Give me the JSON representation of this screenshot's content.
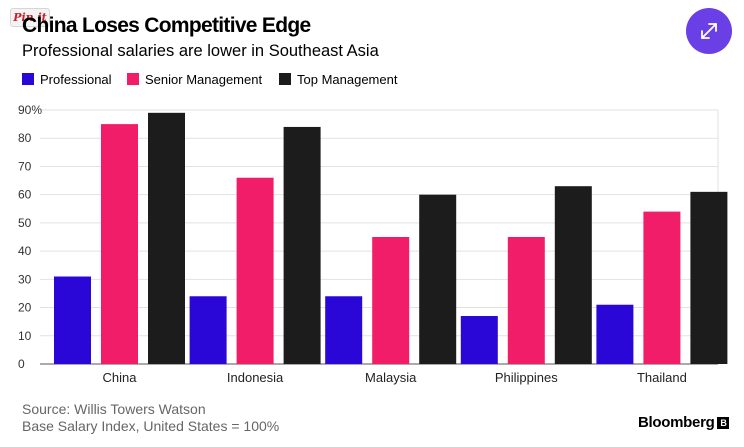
{
  "pin_label": "Pin it",
  "title": "China Loses Competitive Edge",
  "subtitle": "Professional salaries are lower in Southeast Asia",
  "expand_icon": "expand-arrows-icon",
  "source_line1": "Source: Willis Towers Watson",
  "source_line2": "Base Salary Index, United States = 100%",
  "brand": "Bloomberg",
  "colors": {
    "professional": "#2a07d6",
    "senior": "#f21d68",
    "top": "#1c1c1c",
    "accent": "#6a3fe6"
  },
  "chart_data": {
    "type": "bar",
    "categories": [
      "China",
      "Indonesia",
      "Malaysia",
      "Philippines",
      "Thailand"
    ],
    "series": [
      {
        "name": "Professional",
        "values": [
          31,
          24,
          24,
          17,
          21
        ]
      },
      {
        "name": "Senior Management",
        "values": [
          85,
          66,
          45,
          45,
          54
        ]
      },
      {
        "name": "Top Management",
        "values": [
          89,
          84,
          60,
          63,
          61
        ]
      }
    ],
    "y_ticks": [
      "0",
      "10",
      "20",
      "30",
      "40",
      "50",
      "60",
      "70",
      "80",
      "90%"
    ],
    "ylim": [
      0,
      90
    ],
    "grid": true,
    "legend_position": "top-left"
  }
}
